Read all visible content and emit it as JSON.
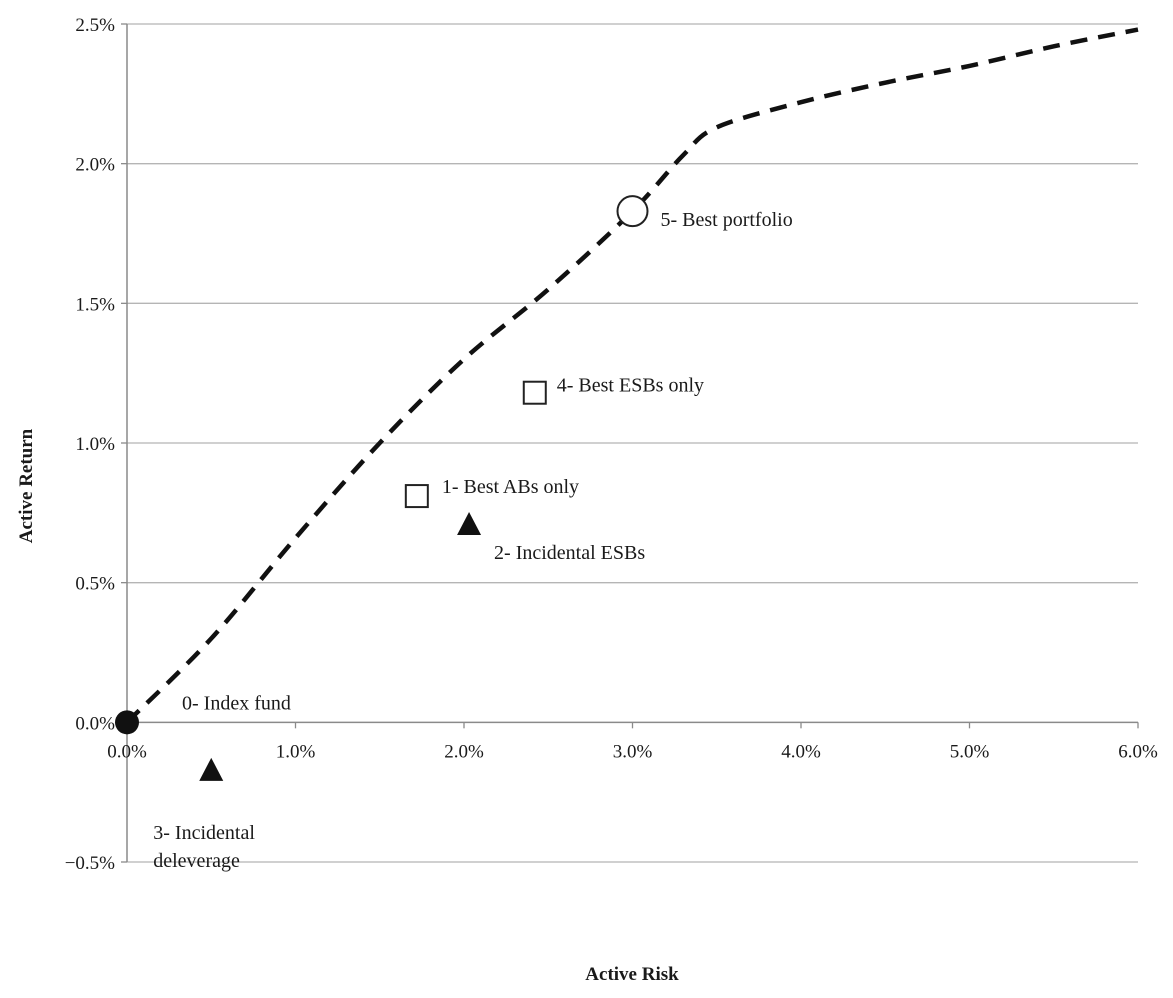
{
  "chart_data": {
    "type": "scatter",
    "title": "",
    "xlabel": "Active Risk",
    "ylabel": "Active Return",
    "xlim": [
      0.0,
      6.0
    ],
    "ylim": [
      -0.5,
      2.5
    ],
    "x_unit": "%",
    "y_unit": "%",
    "x_ticks": [
      0.0,
      1.0,
      2.0,
      3.0,
      4.0,
      5.0,
      6.0
    ],
    "x_tick_labels": [
      "0.0%",
      "1.0%",
      "2.0%",
      "3.0%",
      "4.0%",
      "5.0%",
      "6.0%"
    ],
    "y_ticks": [
      -0.5,
      0.0,
      0.5,
      1.0,
      1.5,
      2.0,
      2.5
    ],
    "y_tick_labels": [
      "−0.5%",
      "0.0%",
      "0.5%",
      "1.0%",
      "1.5%",
      "2.0%",
      "2.5%"
    ],
    "grid": "horizontal",
    "legend": "none",
    "series": [
      {
        "style": "dashed-line",
        "color": "#111111",
        "x": [
          0.0,
          0.5,
          1.0,
          1.5,
          2.0,
          2.5,
          3.0,
          3.3,
          3.5,
          4.0,
          4.5,
          5.0,
          5.5,
          6.0
        ],
        "y": [
          0.0,
          0.3,
          0.66,
          1.0,
          1.3,
          1.55,
          1.83,
          2.03,
          2.13,
          2.22,
          2.29,
          2.35,
          2.42,
          2.48
        ]
      }
    ],
    "points": [
      {
        "label_lines": [
          "0- Index fund"
        ],
        "x": 0.0,
        "y": 0.0,
        "marker": "filled-circle"
      },
      {
        "label_lines": [
          "1- Best ABs only"
        ],
        "x": 1.72,
        "y": 0.81,
        "marker": "open-square"
      },
      {
        "label_lines": [
          "2- Incidental ESBs"
        ],
        "x": 2.03,
        "y": 0.71,
        "marker": "filled-triangle"
      },
      {
        "label_lines": [
          "3- Incidental",
          "deleverage"
        ],
        "x": 0.5,
        "y": -0.17,
        "marker": "filled-triangle"
      },
      {
        "label_lines": [
          "4- Best ESBs only"
        ],
        "x": 2.42,
        "y": 1.18,
        "marker": "open-square"
      },
      {
        "label_lines": [
          "5- Best portfolio"
        ],
        "x": 3.0,
        "y": 1.83,
        "marker": "open-circle"
      }
    ]
  }
}
